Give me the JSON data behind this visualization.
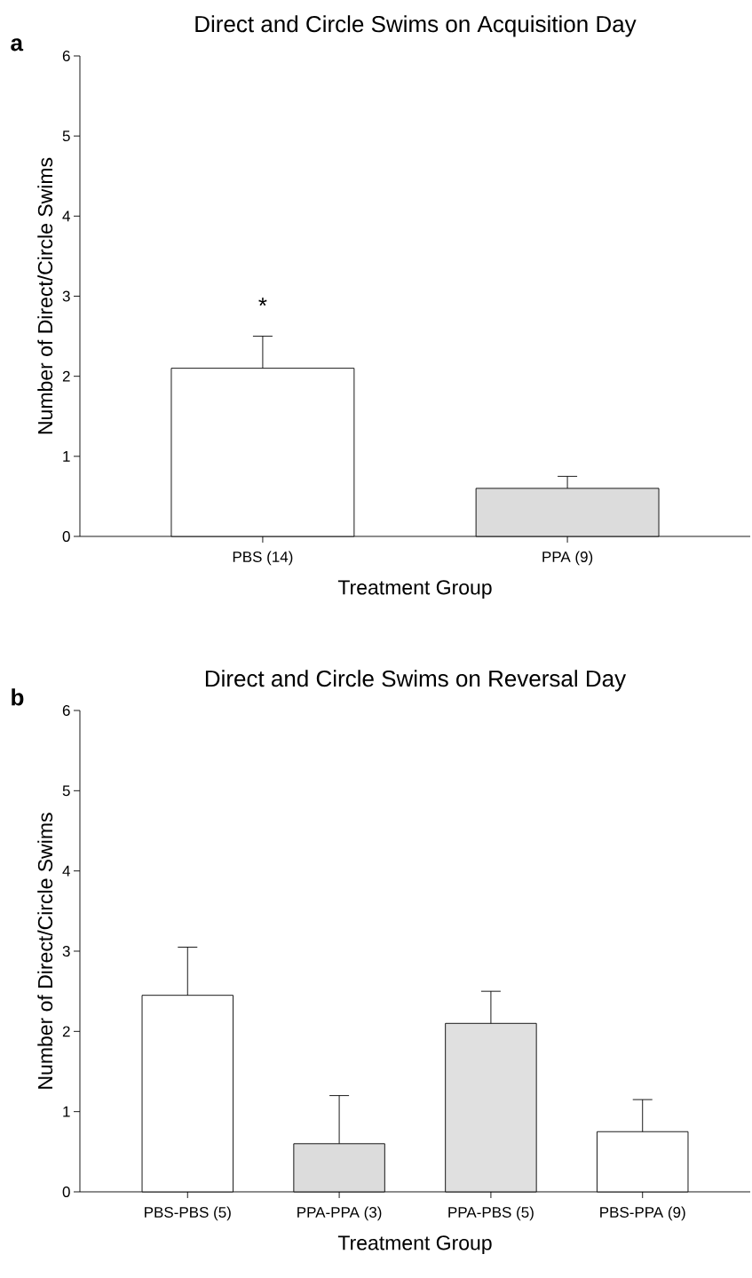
{
  "chart_data": [
    {
      "type": "bar",
      "title": "Direct and Circle Swims on Acquisition Day",
      "xlabel": "Treatment Group",
      "ylabel": "Number of Direct/Circle Swims",
      "categories": [
        "PBS (14)",
        "PPA (9)"
      ],
      "values": [
        2.1,
        0.6
      ],
      "colors": [
        "#ffffff",
        "#dcdcdc"
      ],
      "errors": [
        [
          2.1,
          2.5
        ],
        [
          0.6,
          0.75
        ]
      ],
      "ylim": [
        0,
        6
      ],
      "yticks": [
        0,
        1,
        2,
        3,
        4,
        5,
        6
      ],
      "annotations": [
        "a",
        "*"
      ]
    },
    {
      "type": "bar",
      "title": "Direct and Circle Swims on Reversal Day",
      "xlabel": "Treatment Group",
      "ylabel": "Number of Direct/Circle Swims",
      "categories": [
        "PBS-PBS (5)",
        "PPA-PPA (3)",
        "PPA-PBS (5)",
        "PBS-PPA (9)"
      ],
      "values": [
        2.45,
        0.6,
        2.1,
        0.75
      ],
      "colors": [
        "#ffffff",
        "#dcdcdc",
        "#e0e0e0",
        "#ffffff"
      ],
      "errors": [
        [
          2.45,
          3.05
        ],
        [
          0.6,
          1.2
        ],
        [
          2.1,
          2.5
        ],
        [
          0.75,
          1.15
        ]
      ],
      "ylim": [
        0,
        6
      ],
      "yticks": [
        0,
        1,
        2,
        3,
        4,
        5,
        6
      ],
      "annotations": [
        "b"
      ]
    }
  ]
}
